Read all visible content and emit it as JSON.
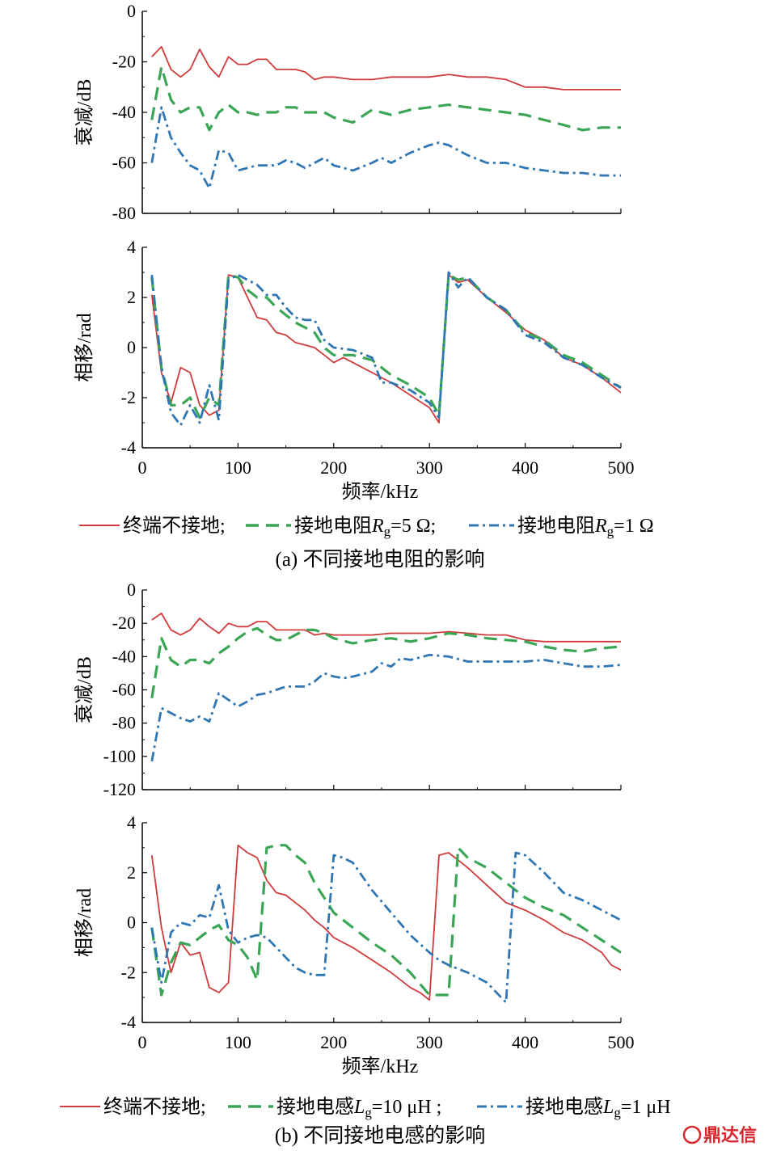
{
  "figure": {
    "caption_a": "(a) 不同接地电阻的影响",
    "caption_b": "(b) 不同接地电感的影响",
    "legend_a": {
      "s1": "终端不接地;",
      "s2_pre": "接地电阻",
      "s2_var": "R",
      "s2_sub": "g",
      "s2_val": "=5 Ω;",
      "s3_pre": "接地电阻",
      "s3_var": "R",
      "s3_sub": "g",
      "s3_val": "=1 Ω"
    },
    "legend_b": {
      "s1": "终端不接地;",
      "s2_pre": "接地电感",
      "s2_var": "L",
      "s2_sub": "g",
      "s2_val": "=10 μH ;",
      "s3_pre": "接地电感",
      "s3_var": "L",
      "s3_sub": "g",
      "s3_val": "=1 μH"
    },
    "watermark": "鼎达信",
    "colors": {
      "red": "#d03a3a",
      "green": "#3aa655",
      "blue": "#2f76b3"
    }
  },
  "chart_data": [
    {
      "id": "a-atten",
      "type": "line",
      "xlabel": "",
      "ylabel": "衰减/dB",
      "xlim": [
        0,
        500
      ],
      "ylim": [
        -80,
        0
      ],
      "yticks": [
        0,
        -20,
        -40,
        -60,
        -80
      ],
      "xticks": [
        0,
        100,
        200,
        300,
        400,
        500
      ],
      "show_xticklabels": false,
      "series": [
        {
          "color": "red",
          "style": "solid",
          "x": [
            10,
            20,
            30,
            40,
            50,
            60,
            70,
            80,
            90,
            100,
            110,
            120,
            130,
            140,
            150,
            160,
            170,
            180,
            190,
            200,
            220,
            240,
            260,
            280,
            300,
            320,
            340,
            360,
            380,
            400,
            420,
            440,
            460,
            480,
            500
          ],
          "y": [
            -18,
            -14,
            -23,
            -26,
            -23,
            -15,
            -22,
            -26,
            -18,
            -21,
            -21,
            -19,
            -19,
            -23,
            -23,
            -23,
            -24,
            -27,
            -26,
            -26,
            -27,
            -27,
            -26,
            -26,
            -26,
            -25,
            -26,
            -26,
            -27,
            -30,
            -30,
            -31,
            -31,
            -31,
            -31
          ]
        },
        {
          "color": "green",
          "style": "dash",
          "x": [
            10,
            20,
            30,
            40,
            50,
            60,
            70,
            80,
            90,
            100,
            110,
            120,
            130,
            140,
            150,
            160,
            170,
            180,
            190,
            200,
            220,
            240,
            260,
            280,
            300,
            320,
            340,
            360,
            380,
            400,
            420,
            440,
            460,
            480,
            500
          ],
          "y": [
            -43,
            -22,
            -35,
            -40,
            -38,
            -38,
            -47,
            -40,
            -37,
            -40,
            -40,
            -41,
            -40,
            -40,
            -38,
            -38,
            -40,
            -40,
            -40,
            -42,
            -44,
            -39,
            -41,
            -39,
            -38,
            -37,
            -38,
            -39,
            -40,
            -41,
            -43,
            -45,
            -47,
            -46,
            -46
          ]
        },
        {
          "color": "blue",
          "style": "dashdot",
          "x": [
            10,
            20,
            30,
            40,
            50,
            60,
            70,
            80,
            90,
            100,
            110,
            120,
            130,
            140,
            150,
            160,
            170,
            180,
            190,
            200,
            220,
            240,
            250,
            260,
            280,
            300,
            310,
            320,
            340,
            360,
            380,
            400,
            420,
            440,
            460,
            480,
            500
          ],
          "y": [
            -60,
            -38,
            -50,
            -56,
            -61,
            -63,
            -70,
            -55,
            -56,
            -63,
            -62,
            -61,
            -61,
            -61,
            -59,
            -60,
            -62,
            -60,
            -58,
            -61,
            -63,
            -60,
            -58,
            -60,
            -56,
            -53,
            -52,
            -53,
            -57,
            -60,
            -60,
            -62,
            -63,
            -64,
            -64,
            -65,
            -65
          ]
        }
      ]
    },
    {
      "id": "a-phase",
      "type": "line",
      "xlabel": "频率/kHz",
      "ylabel": "相移/rad",
      "xlim": [
        0,
        500
      ],
      "ylim": [
        -4,
        4
      ],
      "yticks": [
        4,
        2,
        0,
        -2,
        -4
      ],
      "xticks": [
        0,
        100,
        200,
        300,
        400,
        500
      ],
      "show_xticklabels": true,
      "series": [
        {
          "color": "red",
          "style": "solid",
          "x": [
            10,
            20,
            30,
            40,
            50,
            60,
            70,
            80,
            90,
            100,
            110,
            120,
            130,
            140,
            150,
            160,
            170,
            180,
            190,
            200,
            210,
            220,
            240,
            260,
            280,
            300,
            310,
            320,
            330,
            340,
            360,
            380,
            400,
            420,
            440,
            460,
            480,
            500
          ],
          "y": [
            2.1,
            -1.0,
            -2.2,
            -0.8,
            -1.0,
            -2.3,
            -2.7,
            -2.5,
            2.9,
            2.8,
            2.0,
            1.2,
            1.1,
            0.6,
            0.5,
            0.2,
            0.1,
            0.0,
            -0.3,
            -0.6,
            -0.4,
            -0.6,
            -1.0,
            -1.4,
            -1.9,
            -2.4,
            -3.0,
            2.9,
            2.6,
            2.7,
            2.0,
            1.4,
            0.7,
            0.3,
            -0.4,
            -0.7,
            -1.2,
            -1.8
          ]
        },
        {
          "color": "green",
          "style": "dash",
          "x": [
            10,
            20,
            30,
            40,
            50,
            60,
            70,
            80,
            90,
            100,
            110,
            120,
            130,
            140,
            150,
            160,
            170,
            180,
            190,
            200,
            220,
            240,
            260,
            280,
            300,
            310,
            320,
            330,
            340,
            360,
            380,
            400,
            420,
            440,
            460,
            480,
            500
          ],
          "y": [
            2.8,
            -0.8,
            -2.3,
            -2.3,
            -2.0,
            -2.8,
            -2.0,
            -2.3,
            2.9,
            2.8,
            2.3,
            2.0,
            2.0,
            1.6,
            1.3,
            1.0,
            0.8,
            0.6,
            0.0,
            -0.3,
            -0.3,
            -0.5,
            -1.1,
            -1.5,
            -2.0,
            -2.7,
            2.9,
            2.7,
            2.8,
            2.0,
            1.5,
            0.6,
            0.3,
            -0.3,
            -0.6,
            -1.1,
            -1.6
          ]
        },
        {
          "color": "blue",
          "style": "dashdot",
          "x": [
            10,
            20,
            30,
            40,
            50,
            60,
            70,
            80,
            90,
            100,
            110,
            120,
            130,
            140,
            150,
            160,
            170,
            180,
            190,
            200,
            220,
            240,
            250,
            260,
            280,
            300,
            310,
            320,
            330,
            340,
            360,
            380,
            400,
            420,
            440,
            460,
            480,
            500
          ],
          "y": [
            2.9,
            -0.8,
            -2.6,
            -3.1,
            -2.3,
            -3.0,
            -1.5,
            -2.9,
            2.7,
            2.9,
            2.7,
            2.5,
            2.1,
            2.1,
            1.6,
            1.2,
            1.1,
            1.1,
            0.3,
            0.0,
            -0.1,
            -0.4,
            -1.4,
            -1.4,
            -1.7,
            -2.2,
            -2.8,
            3.0,
            2.4,
            2.8,
            2.0,
            1.5,
            0.5,
            0.2,
            -0.4,
            -0.7,
            -1.2,
            -1.6
          ]
        }
      ]
    },
    {
      "id": "b-atten",
      "type": "line",
      "xlabel": "",
      "ylabel": "衰减/dB",
      "xlim": [
        0,
        500
      ],
      "ylim": [
        -120,
        0
      ],
      "yticks": [
        0,
        -20,
        -40,
        -60,
        -80,
        -100,
        -120
      ],
      "xticks": [
        0,
        100,
        200,
        300,
        400,
        500
      ],
      "show_xticklabels": false,
      "series": [
        {
          "color": "red",
          "style": "solid",
          "x": [
            10,
            20,
            30,
            40,
            50,
            60,
            70,
            80,
            90,
            100,
            110,
            120,
            130,
            140,
            150,
            160,
            170,
            180,
            190,
            200,
            220,
            240,
            260,
            280,
            300,
            320,
            340,
            360,
            380,
            400,
            420,
            440,
            460,
            480,
            500
          ],
          "y": [
            -18,
            -14,
            -24,
            -27,
            -24,
            -17,
            -22,
            -26,
            -20,
            -22,
            -22,
            -19,
            -19,
            -24,
            -24,
            -24,
            -24,
            -27,
            -26,
            -27,
            -27,
            -27,
            -26,
            -26,
            -26,
            -25,
            -26,
            -27,
            -27,
            -30,
            -31,
            -31,
            -31,
            -31,
            -31
          ]
        },
        {
          "color": "green",
          "style": "dash",
          "x": [
            10,
            20,
            30,
            40,
            50,
            60,
            70,
            80,
            90,
            100,
            110,
            120,
            130,
            140,
            150,
            160,
            170,
            180,
            190,
            200,
            220,
            240,
            260,
            280,
            300,
            320,
            340,
            360,
            380,
            400,
            420,
            440,
            460,
            480,
            500
          ],
          "y": [
            -65,
            -29,
            -42,
            -46,
            -42,
            -42,
            -44,
            -38,
            -34,
            -29,
            -25,
            -23,
            -27,
            -30,
            -30,
            -27,
            -24,
            -24,
            -26,
            -29,
            -32,
            -30,
            -29,
            -31,
            -29,
            -26,
            -27,
            -29,
            -30,
            -31,
            -34,
            -36,
            -37,
            -35,
            -34
          ]
        },
        {
          "color": "blue",
          "style": "dashdot",
          "x": [
            10,
            20,
            30,
            40,
            50,
            60,
            70,
            80,
            90,
            100,
            110,
            120,
            130,
            140,
            150,
            160,
            170,
            180,
            190,
            200,
            210,
            220,
            240,
            250,
            260,
            270,
            280,
            300,
            320,
            340,
            360,
            380,
            400,
            420,
            440,
            460,
            480,
            500
          ],
          "y": [
            -103,
            -71,
            -74,
            -77,
            -79,
            -76,
            -79,
            -62,
            -66,
            -70,
            -67,
            -63,
            -62,
            -60,
            -58,
            -58,
            -58,
            -55,
            -50,
            -52,
            -53,
            -52,
            -49,
            -44,
            -46,
            -41,
            -42,
            -39,
            -40,
            -43,
            -43,
            -43,
            -43,
            -42,
            -44,
            -46,
            -46,
            -45
          ]
        }
      ]
    },
    {
      "id": "b-phase",
      "type": "line",
      "xlabel": "频率/kHz",
      "ylabel": "相移/rad",
      "xlim": [
        0,
        500
      ],
      "ylim": [
        -4,
        4
      ],
      "yticks": [
        4,
        2,
        0,
        -2,
        -4
      ],
      "xticks": [
        0,
        100,
        200,
        300,
        400,
        500
      ],
      "show_xticklabels": true,
      "series": [
        {
          "color": "red",
          "style": "solid",
          "x": [
            10,
            20,
            30,
            40,
            50,
            60,
            70,
            80,
            90,
            100,
            110,
            120,
            130,
            140,
            150,
            160,
            170,
            180,
            190,
            200,
            220,
            240,
            260,
            280,
            290,
            300,
            310,
            320,
            340,
            360,
            380,
            400,
            420,
            440,
            460,
            480,
            490,
            500
          ],
          "y": [
            2.7,
            -0.2,
            -2.0,
            -0.8,
            -1.3,
            -1.2,
            -2.6,
            -2.8,
            -2.4,
            3.1,
            2.8,
            2.6,
            1.7,
            1.2,
            1.1,
            0.8,
            0.5,
            0.1,
            -0.2,
            -0.6,
            -1.0,
            -1.5,
            -2.0,
            -2.6,
            -2.8,
            -3.1,
            2.7,
            2.8,
            2.2,
            1.5,
            0.8,
            0.5,
            0.1,
            -0.4,
            -0.7,
            -1.2,
            -1.7,
            -1.9
          ]
        },
        {
          "color": "green",
          "style": "dash",
          "x": [
            10,
            20,
            30,
            40,
            50,
            60,
            70,
            80,
            90,
            100,
            110,
            120,
            130,
            140,
            150,
            160,
            170,
            180,
            190,
            200,
            220,
            240,
            260,
            280,
            300,
            310,
            320,
            330,
            340,
            360,
            380,
            400,
            420,
            440,
            460,
            480,
            500
          ],
          "y": [
            -0.2,
            -2.9,
            -1.6,
            -0.8,
            -0.9,
            -0.6,
            -0.3,
            -0.1,
            -0.7,
            -0.9,
            -1.4,
            -2.3,
            3.0,
            3.1,
            3.1,
            2.7,
            2.4,
            1.6,
            1.0,
            0.4,
            -0.2,
            -0.8,
            -1.3,
            -2.0,
            -2.9,
            -2.9,
            -2.9,
            3.0,
            2.6,
            2.2,
            1.6,
            1.0,
            0.6,
            0.3,
            -0.2,
            -0.7,
            -1.2
          ]
        },
        {
          "color": "blue",
          "style": "dashdot",
          "x": [
            10,
            20,
            30,
            40,
            50,
            60,
            70,
            80,
            90,
            100,
            110,
            120,
            130,
            140,
            150,
            160,
            170,
            180,
            190,
            200,
            210,
            220,
            240,
            260,
            280,
            300,
            310,
            320,
            340,
            360,
            380,
            390,
            400,
            420,
            440,
            460,
            480,
            500
          ],
          "y": [
            -0.2,
            -2.4,
            -0.4,
            0.0,
            -0.1,
            0.3,
            0.2,
            1.5,
            -0.3,
            -0.8,
            -0.6,
            -0.5,
            -0.6,
            -1.0,
            -1.4,
            -1.8,
            -2.0,
            -2.1,
            -2.1,
            2.7,
            2.6,
            2.4,
            1.3,
            0.4,
            -0.5,
            -1.2,
            -1.5,
            -1.7,
            -2.0,
            -2.4,
            -3.2,
            2.8,
            2.7,
            2.0,
            1.2,
            0.9,
            0.5,
            0.1
          ]
        }
      ]
    }
  ]
}
